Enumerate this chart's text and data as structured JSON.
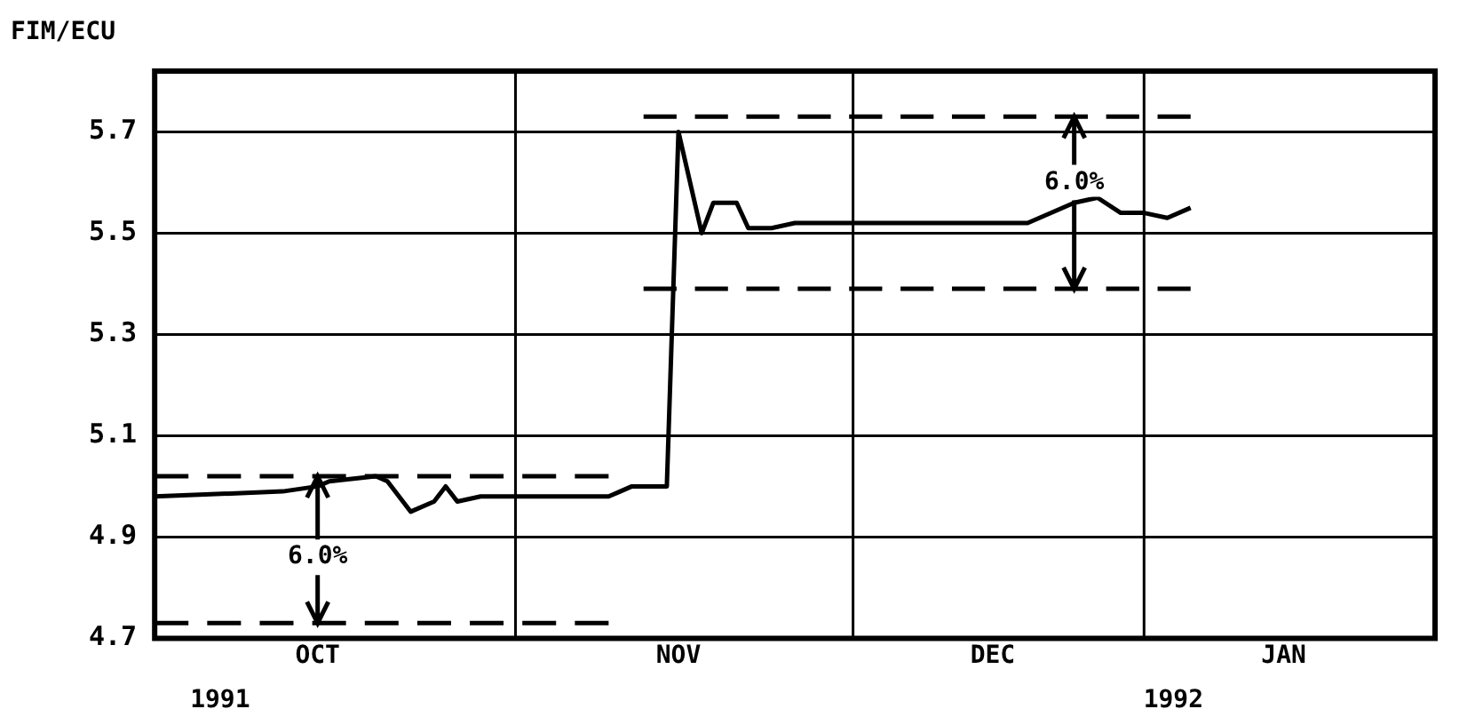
{
  "chart_data": {
    "type": "line",
    "ylabel": "FIM/ECU",
    "xlim": [
      "1991-10-01",
      "1992-01-19"
    ],
    "xticks": [
      {
        "value": "1991-10-15",
        "label": "OCT"
      },
      {
        "value": "1991-11-15",
        "label": "NOV"
      },
      {
        "value": "1991-12-12",
        "label": "DEC"
      },
      {
        "value": "1992-01-06",
        "label": "JAN"
      }
    ],
    "ylim": [
      4.7,
      5.82
    ],
    "yticks": [
      4.7,
      4.9,
      5.1,
      5.3,
      5.5,
      5.7
    ],
    "grid": "y",
    "marker": "none",
    "ref_lines": [
      {
        "axis": "x",
        "value": "1991-11-01"
      },
      {
        "axis": "x",
        "value": "1991-11-30"
      },
      {
        "axis": "x",
        "value": "1991-12-25"
      }
    ],
    "series": [
      {
        "color": "#000000",
        "line_style": "solid",
        "x": [
          "1991-10-01",
          "1991-10-12",
          "1991-10-15",
          "1991-10-16",
          "1991-10-20",
          "1991-10-21",
          "1991-10-23",
          "1991-10-25",
          "1991-10-26",
          "1991-10-27",
          "1991-10-29",
          "1991-11-01",
          "1991-11-06",
          "1991-11-09",
          "1991-11-10",
          "1991-11-11",
          "1991-11-14",
          "1991-11-15",
          "1991-11-17",
          "1991-11-18",
          "1991-11-20",
          "1991-11-21",
          "1991-11-23",
          "1991-11-25",
          "1991-11-30",
          "1991-12-04",
          "1991-12-11",
          "1991-12-15",
          "1991-12-19",
          "1991-12-21",
          "1991-12-23",
          "1991-12-25",
          "1991-12-27",
          "1991-12-29"
        ],
        "values": [
          4.98,
          4.99,
          5.0,
          5.01,
          5.02,
          5.01,
          4.95,
          4.97,
          5.0,
          4.97,
          4.98,
          4.98,
          4.98,
          4.98,
          4.99,
          5.0,
          5.0,
          5.7,
          5.5,
          5.56,
          5.56,
          5.51,
          5.51,
          5.52,
          5.52,
          5.52,
          5.52,
          5.52,
          5.56,
          5.57,
          5.54,
          5.54,
          5.53,
          5.55
        ]
      },
      {
        "color": "#000000",
        "line_style": "dashed",
        "x": [
          "1991-10-01",
          "1991-11-09"
        ],
        "values": [
          5.02,
          5.02
        ]
      },
      {
        "color": "#000000",
        "line_style": "dashed",
        "x": [
          "1991-10-01",
          "1991-11-09"
        ],
        "values": [
          4.73,
          4.73
        ]
      },
      {
        "color": "#000000",
        "line_style": "dashed",
        "x": [
          "1991-11-12",
          "1991-12-29"
        ],
        "values": [
          5.73,
          5.73
        ]
      },
      {
        "color": "#000000",
        "line_style": "dashed",
        "x": [
          "1991-11-12",
          "1991-12-29"
        ],
        "values": [
          5.39,
          5.39
        ]
      }
    ],
    "annotations": [
      {
        "text": "6.0%",
        "x": "1991-10-15",
        "y": 4.86
      },
      {
        "text": "6.0%",
        "x": "1991-12-19",
        "y": 5.6
      },
      "1991",
      "1992"
    ]
  }
}
